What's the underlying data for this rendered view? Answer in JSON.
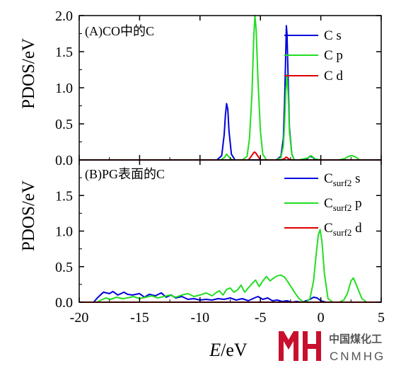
{
  "chart_data": [
    {
      "type": "line",
      "panel_label": "(A)CO中的C",
      "ylabel": "PDOS/eV",
      "xlim": [
        -20,
        5
      ],
      "ylim": [
        0,
        2.0
      ],
      "yticks": [
        "0.0",
        "0.5",
        "1.0",
        "1.5",
        "2.0"
      ],
      "legend_position": "top-right",
      "series": [
        {
          "name": "C s",
          "subscript": "",
          "suffix": "",
          "color": "#0000dd",
          "x": [
            -20,
            -8.6,
            -8.2,
            -8.0,
            -7.9,
            -7.8,
            -7.7,
            -7.6,
            -7.4,
            -7.1,
            -5.5,
            -3.7,
            -3.3,
            -3.1,
            -3.0,
            -2.9,
            -2.85,
            -2.8,
            -2.7,
            -2.6,
            -2.4,
            -2.2,
            -1.8,
            -1.4,
            -1.1,
            -0.9,
            -0.7,
            -0.5,
            0.0,
            2.0,
            5.0
          ],
          "y": [
            0,
            0,
            0.06,
            0.35,
            0.62,
            0.78,
            0.7,
            0.4,
            0.08,
            0,
            0,
            0,
            0.05,
            0.3,
            0.8,
            1.5,
            1.86,
            1.75,
            1.1,
            0.45,
            0.08,
            0,
            0,
            0,
            0.02,
            0.05,
            0.04,
            0.01,
            0,
            0,
            0
          ]
        },
        {
          "name": "C p",
          "subscript": "",
          "suffix": "",
          "color": "#22dd22",
          "x": [
            -20,
            -8.3,
            -8.0,
            -7.8,
            -7.6,
            -7.3,
            -6.5,
            -6.1,
            -5.9,
            -5.7,
            -5.55,
            -5.45,
            -5.35,
            -5.2,
            -5.0,
            -4.8,
            -4.5,
            -3.7,
            -3.3,
            -3.1,
            -3.0,
            -2.9,
            -2.8,
            -2.7,
            -2.6,
            -2.4,
            -2.2,
            -1.8,
            -1.0,
            -0.8,
            -0.6,
            -0.4,
            0.0,
            1.5,
            2.0,
            2.3,
            2.6,
            2.9,
            3.2,
            5.0
          ],
          "y": [
            0,
            0,
            0.03,
            0.08,
            0.04,
            0,
            0,
            0.05,
            0.3,
            0.9,
            1.7,
            2.0,
            1.8,
            1.1,
            0.4,
            0.08,
            0,
            0,
            0.03,
            0.2,
            0.5,
            0.95,
            1.18,
            0.9,
            0.4,
            0.08,
            0,
            0,
            0.03,
            0.06,
            0.03,
            0.01,
            0,
            0,
            0.02,
            0.05,
            0.06,
            0.04,
            0,
            0
          ]
        },
        {
          "name": "C d",
          "subscript": "",
          "suffix": "",
          "color": "#dd0000",
          "x": [
            -20,
            -6.0,
            -5.8,
            -5.6,
            -5.5,
            -5.4,
            -5.2,
            -5.0,
            -3.3,
            -3.0,
            -2.85,
            -2.7,
            -2.5,
            5.0
          ],
          "y": [
            0,
            0,
            0.04,
            0.09,
            0.11,
            0.1,
            0.05,
            0,
            0,
            0.02,
            0.04,
            0.02,
            0,
            0
          ]
        }
      ]
    },
    {
      "type": "line",
      "panel_label": "(B)PG表面的C",
      "ylabel": "PDOS/eV",
      "xlabel_italic": "E",
      "xlabel_rest": "/eV",
      "xlim": [
        -20,
        5
      ],
      "ylim": [
        0,
        2.0
      ],
      "xticks": [
        "-20",
        "-15",
        "-10",
        "-5",
        "0",
        "5"
      ],
      "yticks": [
        "0.0",
        "0.5",
        "1.0",
        "1.5"
      ],
      "legend_position": "top-right",
      "series": [
        {
          "name": "C",
          "subscript": "surf2",
          "suffix": "s",
          "color": "#0000dd",
          "x": [
            -20,
            -18.8,
            -18.5,
            -18.0,
            -17.5,
            -17.2,
            -16.8,
            -16.3,
            -16.0,
            -15.6,
            -15.0,
            -14.6,
            -14.2,
            -13.7,
            -13.2,
            -12.8,
            -12.4,
            -12.0,
            -11.5,
            -11.0,
            -10.5,
            -10.0,
            -9.5,
            -9.0,
            -8.5,
            -8.0,
            -7.5,
            -7.0,
            -6.5,
            -6.0,
            -5.5,
            -5.2,
            -4.8,
            -4.4,
            -4.0,
            -3.6,
            -3.2,
            -2.8,
            -2.4,
            -2.0,
            -1.6,
            -1.2,
            -0.9,
            -0.6,
            -0.3,
            0.0,
            0.4,
            1.0,
            2.0,
            5.0
          ],
          "y": [
            0,
            0,
            0.06,
            0.14,
            0.12,
            0.15,
            0.1,
            0.14,
            0.11,
            0.1,
            0.12,
            0.07,
            0.11,
            0.09,
            0.13,
            0.07,
            0.1,
            0.06,
            0.08,
            0.04,
            0.05,
            0.03,
            0.04,
            0.03,
            0.05,
            0.04,
            0.06,
            0.03,
            0.05,
            0.02,
            0.06,
            0.08,
            0.04,
            0.06,
            0.02,
            0.03,
            0.01,
            0.02,
            0.0,
            0.01,
            0.0,
            0.02,
            0.04,
            0.07,
            0.06,
            0.02,
            0.0,
            0.0,
            0.0,
            0.0
          ]
        },
        {
          "name": "C",
          "subscript": "surf2",
          "suffix": "p",
          "color": "#22dd22",
          "x": [
            -20,
            -18.5,
            -18.2,
            -17.8,
            -17.4,
            -16.9,
            -16.4,
            -16.0,
            -15.5,
            -15.0,
            -14.5,
            -14.0,
            -13.5,
            -13.0,
            -12.5,
            -12.0,
            -11.5,
            -11.0,
            -10.5,
            -10.0,
            -9.5,
            -9.0,
            -8.7,
            -8.4,
            -8.1,
            -7.8,
            -7.5,
            -7.2,
            -6.9,
            -6.6,
            -6.3,
            -6.0,
            -5.7,
            -5.4,
            -5.1,
            -4.8,
            -4.5,
            -4.2,
            -3.9,
            -3.6,
            -3.3,
            -3.0,
            -2.7,
            -2.4,
            -2.1,
            -1.8,
            -1.5,
            -1.2,
            -0.9,
            -0.6,
            -0.4,
            -0.2,
            -0.05,
            0.1,
            0.3,
            0.6,
            1.0,
            1.5,
            1.9,
            2.2,
            2.5,
            2.7,
            3.0,
            3.4,
            3.8,
            5.0
          ],
          "y": [
            0,
            0,
            0.03,
            0.06,
            0.04,
            0.07,
            0.05,
            0.06,
            0.08,
            0.05,
            0.07,
            0.09,
            0.06,
            0.08,
            0.1,
            0.07,
            0.1,
            0.12,
            0.08,
            0.1,
            0.13,
            0.09,
            0.13,
            0.16,
            0.1,
            0.18,
            0.2,
            0.14,
            0.17,
            0.24,
            0.14,
            0.2,
            0.26,
            0.31,
            0.22,
            0.3,
            0.36,
            0.3,
            0.34,
            0.37,
            0.38,
            0.35,
            0.28,
            0.2,
            0.12,
            0.05,
            0.01,
            0.0,
            0.05,
            0.3,
            0.65,
            0.95,
            1.02,
            0.85,
            0.4,
            0.05,
            0.0,
            0.0,
            0.03,
            0.12,
            0.3,
            0.34,
            0.22,
            0.05,
            0.0,
            0.0
          ]
        },
        {
          "name": "C",
          "subscript": "surf2",
          "suffix": "d",
          "color": "#dd0000",
          "x": [
            -20,
            5
          ],
          "y": [
            0,
            0
          ]
        }
      ]
    }
  ],
  "watermark": {
    "logo_color": "#c8102e",
    "cn_text": "中国煤化工",
    "en_text": "CNMHG"
  }
}
